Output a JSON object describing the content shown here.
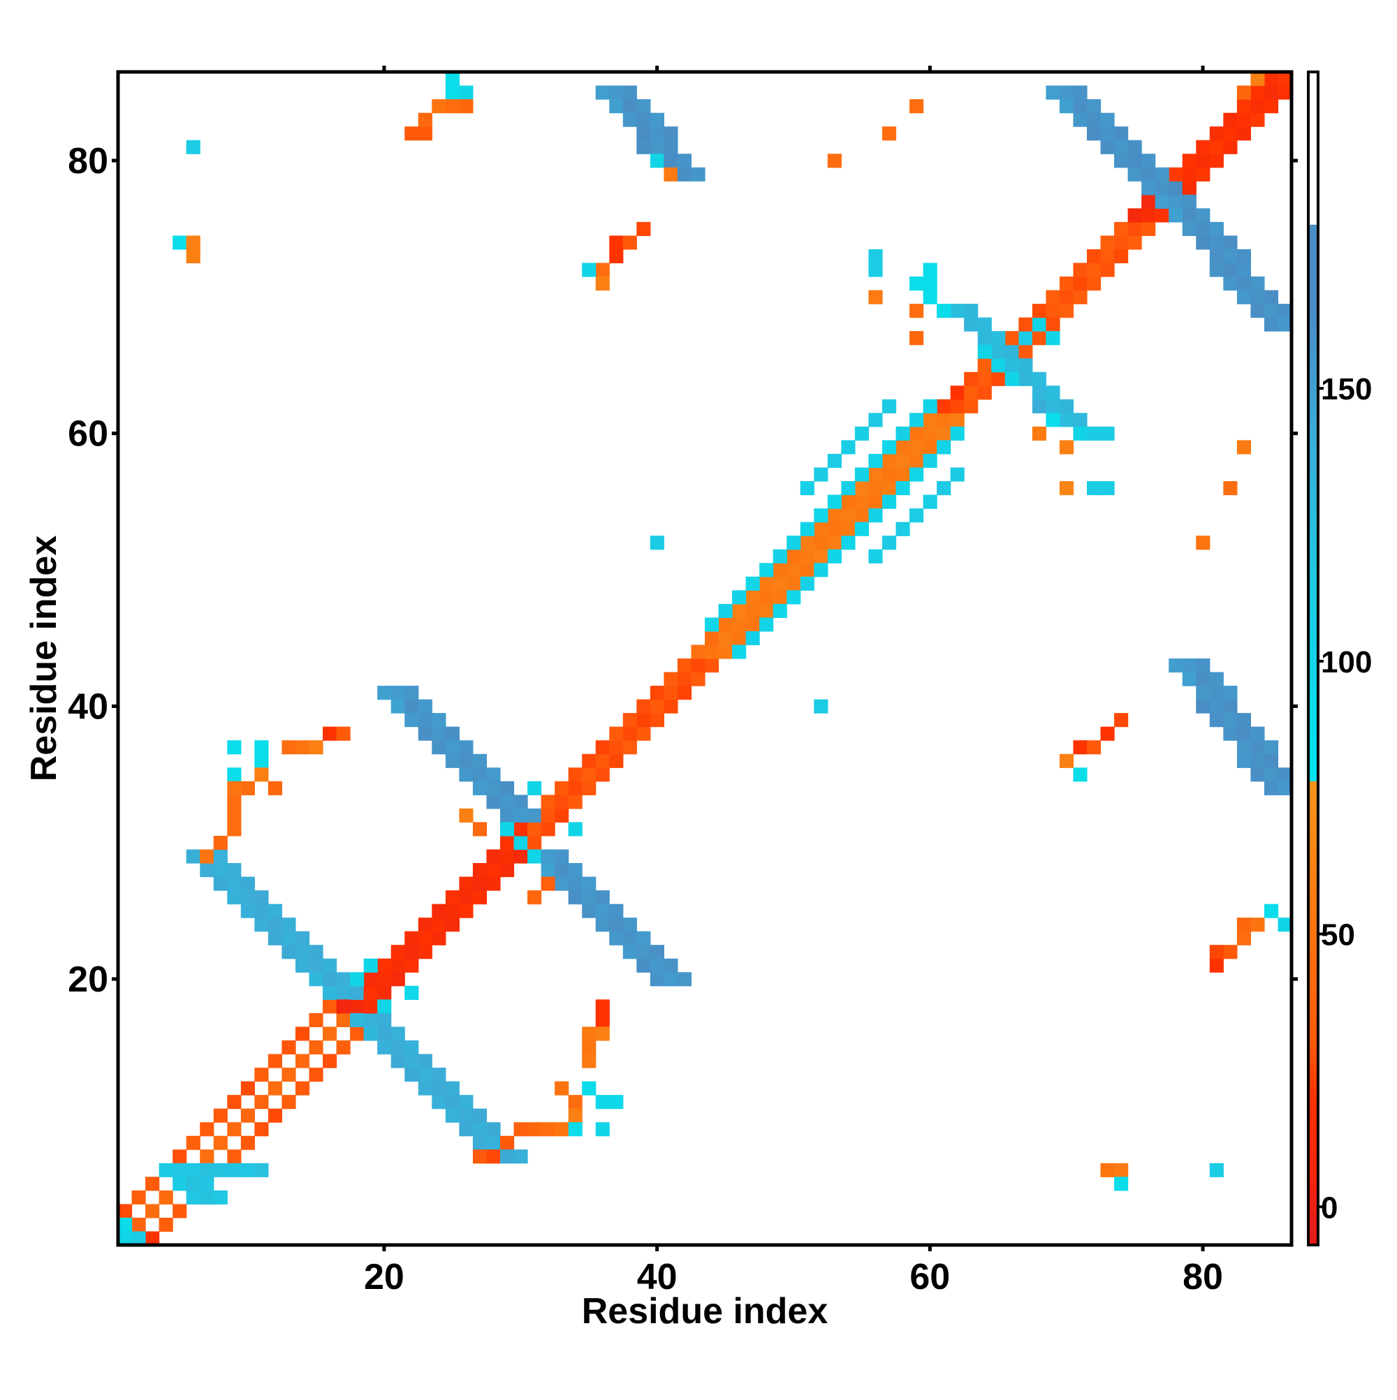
{
  "chart_data": {
    "type": "heatmap",
    "title": "",
    "xlabel": "Residue index",
    "ylabel": "Residue index",
    "x_range": [
      0.5,
      86.5
    ],
    "y_range": [
      0.5,
      86.5
    ],
    "x_ticks": [
      20,
      40,
      60,
      80
    ],
    "y_ticks": [
      20,
      40,
      60,
      80
    ],
    "grid": false,
    "colorbar": {
      "range": [
        -7,
        180
      ],
      "ticks": [
        0,
        50,
        100,
        150
      ],
      "stops": [
        {
          "at": -7,
          "color": "#e41a1c"
        },
        {
          "at": 20,
          "color": "#ff3300"
        },
        {
          "at": 30,
          "color": "#ff5a0a"
        },
        {
          "at": 55,
          "color": "#fb7a12"
        },
        {
          "at": 78,
          "color": "#f7941d"
        },
        {
          "at": 78.01,
          "color": "#00e5ee"
        },
        {
          "at": 115,
          "color": "#1fc8e3"
        },
        {
          "at": 140,
          "color": "#3aaed8"
        },
        {
          "at": 165,
          "color": "#4a8cc4"
        },
        {
          "at": 180,
          "color": "#4a8cc4"
        },
        {
          "at": 180.01,
          "color": "#ffffff"
        }
      ]
    },
    "segments": [
      {
        "x0": 2,
        "y0": 2,
        "x1": 18,
        "y1": 18,
        "w": 1,
        "v": 42
      },
      {
        "x0": 1,
        "y0": 3,
        "x1": 17,
        "y1": 19,
        "w": 1,
        "v": 30
      },
      {
        "x0": 3,
        "y0": 1,
        "x1": 19,
        "y1": 17,
        "w": 1,
        "v": 30
      },
      {
        "x0": 18,
        "y0": 18,
        "x1": 30,
        "y1": 30,
        "w": 3,
        "v": 15
      },
      {
        "x0": 30,
        "y0": 30,
        "x1": 44,
        "y1": 44,
        "w": 3,
        "v": 28
      },
      {
        "x0": 44,
        "y0": 44,
        "x1": 62,
        "y1": 62,
        "w": 3,
        "v": 55
      },
      {
        "x0": 62,
        "y0": 62,
        "x1": 76,
        "y1": 76,
        "w": 3,
        "v": 30
      },
      {
        "x0": 76,
        "y0": 76,
        "x1": 86,
        "y1": 86,
        "w": 3,
        "v": 18
      },
      {
        "x0": 44,
        "y0": 46,
        "x1": 60,
        "y1": 62,
        "w": 1,
        "v": 100
      },
      {
        "x0": 46,
        "y0": 44,
        "x1": 62,
        "y1": 60,
        "w": 1,
        "v": 100
      },
      {
        "x0": 51,
        "y0": 56,
        "x1": 57,
        "y1": 62,
        "w": 1,
        "v": 110
      },
      {
        "x0": 56,
        "y0": 51,
        "x1": 62,
        "y1": 57,
        "w": 1,
        "v": 110
      },
      {
        "x0": 19,
        "y0": 17,
        "x1": 29,
        "y1": 7,
        "w": 3,
        "v": 140
      },
      {
        "x0": 17,
        "y0": 19,
        "x1": 7,
        "y1": 29,
        "w": 3,
        "v": 140
      },
      {
        "x0": 21,
        "y0": 41,
        "x1": 30,
        "y1": 32,
        "w": 3,
        "v": 158
      },
      {
        "x0": 32,
        "y0": 29,
        "x1": 41,
        "y1": 20,
        "w": 3,
        "v": 158
      },
      {
        "x0": 5,
        "y0": 6,
        "x1": 7,
        "y1": 4,
        "w": 3,
        "v": 120
      },
      {
        "x0": 6,
        "y0": 6,
        "x1": 11,
        "y1": 6,
        "w": 1,
        "v": 120
      },
      {
        "x0": 37,
        "y0": 85,
        "x1": 42,
        "y1": 79,
        "w": 3,
        "v": 160
      },
      {
        "x0": 79,
        "y0": 43,
        "x1": 86,
        "y1": 34,
        "w": 3,
        "v": 160
      },
      {
        "x0": 70,
        "y0": 85,
        "x1": 77,
        "y1": 78,
        "w": 3,
        "v": 160
      },
      {
        "x0": 78,
        "y0": 77,
        "x1": 86,
        "y1": 68,
        "w": 3,
        "v": 160
      },
      {
        "x0": 62,
        "y0": 69,
        "x1": 66,
        "y1": 65,
        "w": 2,
        "v": 130
      },
      {
        "x0": 66,
        "y0": 65,
        "x1": 70,
        "y1": 61,
        "w": 2,
        "v": 130
      }
    ],
    "points": [
      [
        25,
        86,
        90
      ],
      [
        25,
        85,
        90
      ],
      [
        26,
        85,
        100
      ],
      [
        24,
        84,
        50
      ],
      [
        25,
        84,
        45
      ],
      [
        26,
        84,
        40
      ],
      [
        22,
        82,
        30
      ],
      [
        23,
        82,
        30
      ],
      [
        23,
        83,
        40
      ],
      [
        6,
        81,
        110
      ],
      [
        5,
        74,
        90
      ],
      [
        6,
        74,
        60
      ],
      [
        6,
        73,
        60
      ],
      [
        37,
        74,
        20
      ],
      [
        38,
        74,
        30
      ],
      [
        39,
        75,
        25
      ],
      [
        37,
        73,
        20
      ],
      [
        36,
        72,
        45
      ],
      [
        36,
        71,
        60
      ],
      [
        35,
        72,
        100
      ],
      [
        56,
        73,
        110
      ],
      [
        56,
        72,
        110
      ],
      [
        56,
        70,
        55
      ],
      [
        59,
        69,
        45
      ],
      [
        59,
        67,
        40
      ],
      [
        57,
        82,
        45
      ],
      [
        59,
        84,
        45
      ],
      [
        53,
        80,
        45
      ],
      [
        84,
        86,
        60
      ],
      [
        83,
        85,
        40
      ],
      [
        70,
        59,
        60
      ],
      [
        71,
        60,
        100
      ],
      [
        72,
        60,
        110
      ],
      [
        73,
        60,
        110
      ],
      [
        73,
        56,
        110
      ],
      [
        72,
        56,
        110
      ],
      [
        70,
        56,
        65
      ],
      [
        83,
        59,
        55
      ],
      [
        82,
        56,
        45
      ],
      [
        80,
        52,
        50
      ],
      [
        52,
        40,
        110
      ],
      [
        40,
        52,
        110
      ],
      [
        71,
        37,
        20
      ],
      [
        70,
        36,
        60
      ],
      [
        71,
        35,
        90
      ],
      [
        72,
        37,
        30
      ],
      [
        73,
        38,
        20
      ],
      [
        74,
        39,
        25
      ],
      [
        82,
        22,
        30
      ],
      [
        81,
        22,
        25
      ],
      [
        81,
        21,
        20
      ],
      [
        83,
        23,
        45
      ],
      [
        83,
        24,
        40
      ],
      [
        84,
        24,
        50
      ],
      [
        85,
        25,
        90
      ],
      [
        86,
        24,
        100
      ],
      [
        73,
        6,
        50
      ],
      [
        74,
        6,
        55
      ],
      [
        74,
        5,
        90
      ],
      [
        81,
        6,
        110
      ],
      [
        11,
        36,
        90
      ],
      [
        9,
        37,
        90
      ],
      [
        11,
        37,
        90
      ],
      [
        13,
        37,
        45
      ],
      [
        14,
        37,
        50
      ],
      [
        15,
        37,
        60
      ],
      [
        16,
        38,
        20
      ],
      [
        17,
        38,
        30
      ],
      [
        9,
        35,
        90
      ],
      [
        10,
        34,
        45
      ],
      [
        9,
        34,
        50
      ],
      [
        9,
        33,
        45
      ],
      [
        9,
        32,
        45
      ],
      [
        9,
        31,
        45
      ],
      [
        8,
        30,
        40
      ],
      [
        7,
        29,
        50
      ],
      [
        11,
        35,
        60
      ],
      [
        12,
        34,
        40
      ],
      [
        36,
        18,
        20
      ],
      [
        36,
        17,
        20
      ],
      [
        35,
        16,
        55
      ],
      [
        36,
        16,
        60
      ],
      [
        35,
        15,
        50
      ],
      [
        35,
        14,
        55
      ],
      [
        33,
        12,
        50
      ],
      [
        34,
        11,
        45
      ],
      [
        35,
        12,
        90
      ],
      [
        36,
        11,
        95
      ],
      [
        37,
        11,
        95
      ],
      [
        34,
        10,
        60
      ],
      [
        32,
        9,
        45
      ],
      [
        33,
        9,
        50
      ],
      [
        31,
        9,
        40
      ],
      [
        30,
        9,
        35
      ],
      [
        29,
        8,
        25
      ],
      [
        34,
        9,
        90
      ],
      [
        36,
        9,
        100
      ],
      [
        27,
        7,
        30
      ],
      [
        28,
        7,
        25
      ],
      [
        29,
        8,
        30
      ],
      [
        1,
        2,
        90
      ],
      [
        2,
        1,
        110
      ],
      [
        3,
        1,
        20
      ],
      [
        1,
        1,
        100
      ],
      [
        30,
        30,
        100
      ],
      [
        29,
        31,
        100
      ],
      [
        31,
        29,
        100
      ],
      [
        31,
        34,
        100
      ],
      [
        34,
        31,
        100
      ],
      [
        26,
        32,
        60
      ],
      [
        27,
        31,
        40
      ],
      [
        32,
        27,
        35
      ],
      [
        31,
        26,
        40
      ],
      [
        20,
        18,
        100
      ],
      [
        18,
        20,
        100
      ],
      [
        22,
        19,
        95
      ],
      [
        19,
        21,
        100
      ],
      [
        65,
        65,
        100
      ],
      [
        64,
        66,
        100
      ],
      [
        66,
        64,
        100
      ],
      [
        67,
        67,
        110
      ],
      [
        68,
        68,
        100
      ],
      [
        69,
        67,
        100
      ],
      [
        68,
        60,
        55
      ],
      [
        69,
        61,
        90
      ],
      [
        68,
        62,
        140
      ],
      [
        61,
        69,
        90
      ],
      [
        60,
        70,
        90
      ],
      [
        60,
        71,
        90
      ],
      [
        59,
        71,
        90
      ],
      [
        60,
        72,
        90
      ],
      [
        41,
        79,
        55
      ],
      [
        40,
        80,
        100
      ]
    ]
  }
}
